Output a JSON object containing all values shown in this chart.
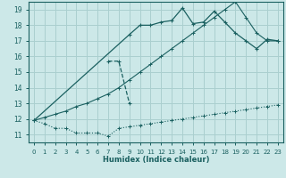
{
  "xlabel": "Humidex (Indice chaleur)",
  "ylabel": "",
  "xlim": [
    -0.5,
    23.5
  ],
  "ylim": [
    10.5,
    19.5
  ],
  "xticks": [
    0,
    1,
    2,
    3,
    4,
    5,
    6,
    7,
    8,
    9,
    10,
    11,
    12,
    13,
    14,
    15,
    16,
    17,
    18,
    19,
    20,
    21,
    22,
    23
  ],
  "yticks": [
    11,
    12,
    13,
    14,
    15,
    16,
    17,
    18,
    19
  ],
  "bg_color": "#cce8e8",
  "grid_color": "#aacfcf",
  "line_color": "#1a6060",
  "lines": [
    {
      "x": [
        0,
        1,
        2,
        3,
        4,
        5,
        6,
        7,
        8,
        9,
        10,
        11,
        12,
        13,
        14,
        15,
        16,
        17,
        18,
        19,
        20,
        21,
        22,
        23
      ],
      "y": [
        11.9,
        11.7,
        11.4,
        11.4,
        11.1,
        11.1,
        11.1,
        10.9,
        11.4,
        11.5,
        11.6,
        11.7,
        11.8,
        11.9,
        12.0,
        12.1,
        12.2,
        12.3,
        12.4,
        12.5,
        12.6,
        12.7,
        12.8,
        12.9
      ]
    },
    {
      "x": [
        0,
        1,
        2,
        3,
        4,
        5,
        6,
        7,
        8,
        9,
        10,
        11,
        12,
        13,
        14,
        15,
        16,
        17,
        18,
        19,
        20,
        21,
        22,
        23
      ],
      "y": [
        11.9,
        12.1,
        12.3,
        12.5,
        12.8,
        13.0,
        13.3,
        13.6,
        14.0,
        14.5,
        15.0,
        15.5,
        16.0,
        16.5,
        17.0,
        17.5,
        18.0,
        18.5,
        19.0,
        19.5,
        18.5,
        17.5,
        17.0,
        17.0
      ]
    },
    {
      "x": [
        0,
        9,
        10,
        11,
        12,
        13,
        14,
        15,
        16,
        17,
        18,
        19,
        20,
        21,
        22,
        23
      ],
      "y": [
        11.9,
        17.4,
        18.0,
        18.0,
        18.2,
        18.3,
        19.1,
        18.1,
        18.2,
        18.9,
        18.2,
        17.5,
        17.0,
        16.5,
        17.1,
        17.0
      ]
    },
    {
      "x": [
        7,
        8,
        9
      ],
      "y": [
        15.7,
        15.7,
        13.0
      ]
    }
  ]
}
